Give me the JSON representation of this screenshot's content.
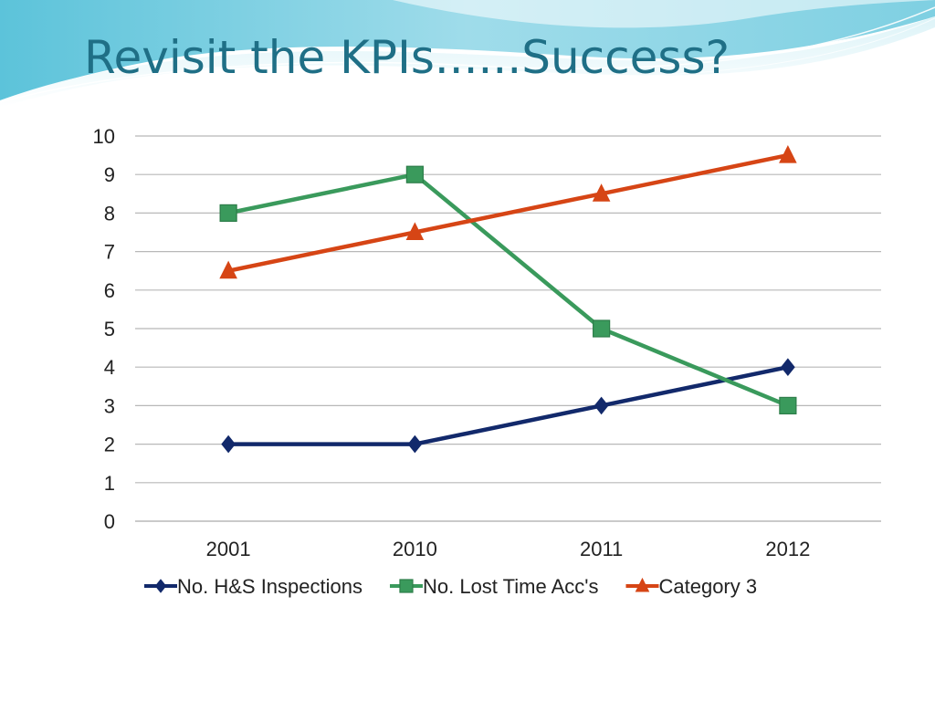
{
  "slide": {
    "title": "Revisit the KPIs......Success?"
  },
  "colors": {
    "title": "#1f6f86",
    "banner_light": "#b9e7f0",
    "banner_mid": "#63c6db",
    "gridline": "#b8b8b8"
  },
  "chart_data": {
    "type": "line",
    "title": "",
    "xlabel": "",
    "ylabel": "",
    "categories": [
      "2001",
      "2010",
      "2011",
      "2012"
    ],
    "ylim": [
      0,
      10
    ],
    "yticks": [
      "0",
      "1",
      "2",
      "3",
      "4",
      "5",
      "6",
      "7",
      "8",
      "9",
      "10"
    ],
    "grid": true,
    "legend_position": "bottom",
    "series": [
      {
        "name": "No. H&S Inspections",
        "values": [
          2,
          2,
          3,
          4
        ],
        "color": "#12296b",
        "marker": "diamond"
      },
      {
        "name": "No. Lost Time Acc's",
        "values": [
          8,
          9,
          5,
          3
        ],
        "color": "#3a9a5c",
        "marker": "square"
      },
      {
        "name": "Category 3",
        "values": [
          6.5,
          7.5,
          8.5,
          9.5
        ],
        "color": "#d64515",
        "marker": "triangle"
      }
    ]
  }
}
